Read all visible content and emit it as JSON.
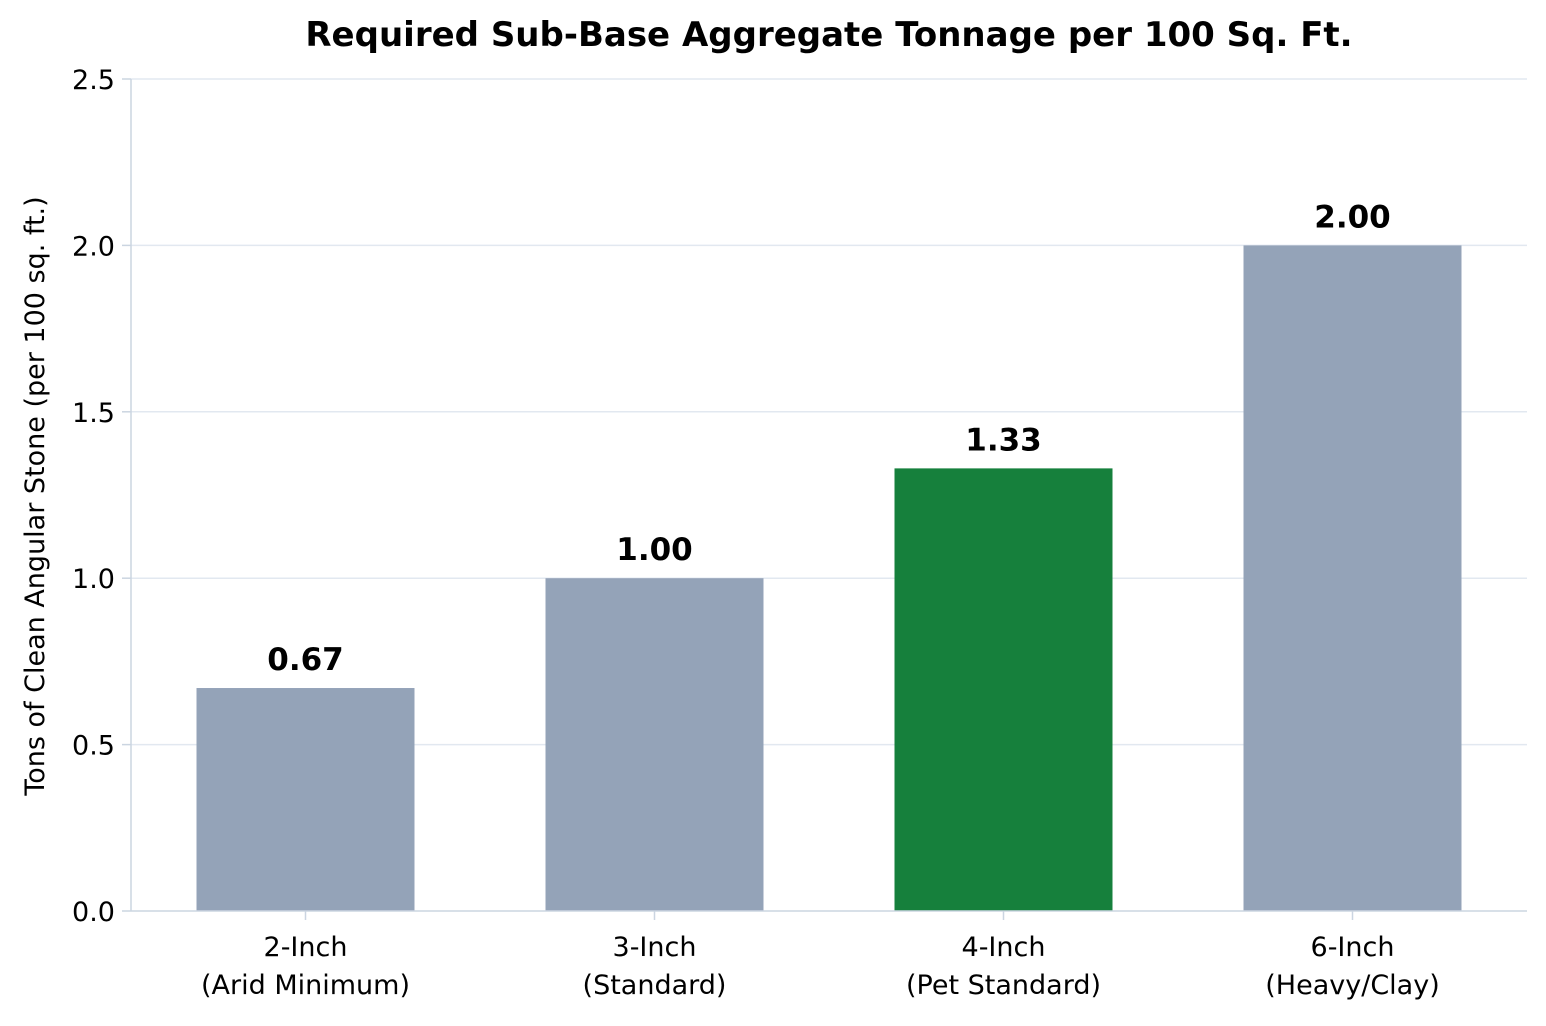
{
  "chart_data": {
    "type": "bar",
    "title": "Required Sub-Base Aggregate Tonnage per 100 Sq. Ft.",
    "xlabel": "",
    "ylabel": "Tons of Clean Angular Stone (per 100 sq. ft.)",
    "ylim": [
      0,
      2.5
    ],
    "yticks": [
      "0.0",
      "0.5",
      "1.0",
      "1.5",
      "2.0",
      "2.5"
    ],
    "grid": "horizontal",
    "categories": [
      {
        "line1": "2-Inch",
        "line2": "(Arid Minimum)"
      },
      {
        "line1": "3-Inch",
        "line2": "(Standard)"
      },
      {
        "line1": "4-Inch",
        "line2": "(Pet Standard)"
      },
      {
        "line1": "6-Inch",
        "line2": "(Heavy/Clay)"
      }
    ],
    "values": [
      0.67,
      1.0,
      1.33,
      2.0
    ],
    "value_labels": [
      "0.67",
      "1.00",
      "1.33",
      "2.00"
    ],
    "highlight_index": 2,
    "colors": {
      "default_bar": "#94a3b8",
      "highlight_bar": "#16803c",
      "grid": "#e2e8f0",
      "axis": "#cbd5e1"
    }
  }
}
